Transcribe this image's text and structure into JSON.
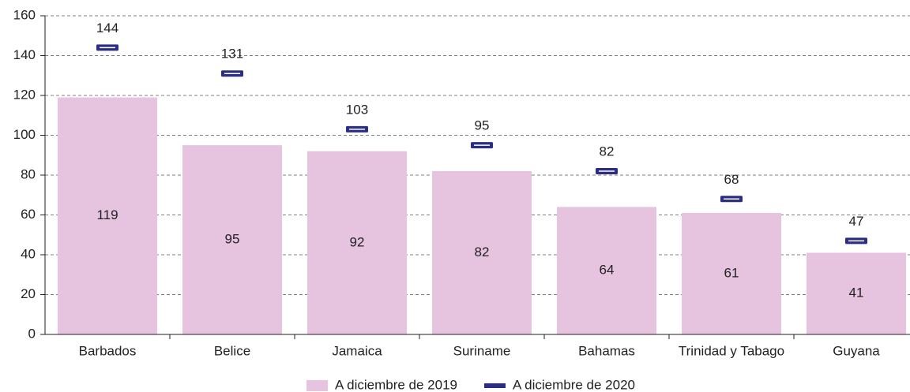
{
  "chart_data": {
    "type": "bar",
    "categories": [
      "Barbados",
      "Belice",
      "Jamaica",
      "Suriname",
      "Bahamas",
      "Trinidad y Tabago",
      "Guyana"
    ],
    "series": [
      {
        "name": "A diciembre de 2019",
        "color": "#e6c3df",
        "mark": "bar",
        "values": [
          119,
          95,
          92,
          82,
          64,
          61,
          41
        ]
      },
      {
        "name": "A diciembre de 2020",
        "color": "#2b2e83",
        "mark": "dash",
        "values": [
          144,
          131,
          103,
          95,
          82,
          68,
          47
        ]
      }
    ],
    "ylim": [
      0,
      160
    ],
    "yticks": [
      0,
      20,
      40,
      60,
      80,
      100,
      120,
      140,
      160
    ],
    "grid": true,
    "legend": "bottom"
  }
}
